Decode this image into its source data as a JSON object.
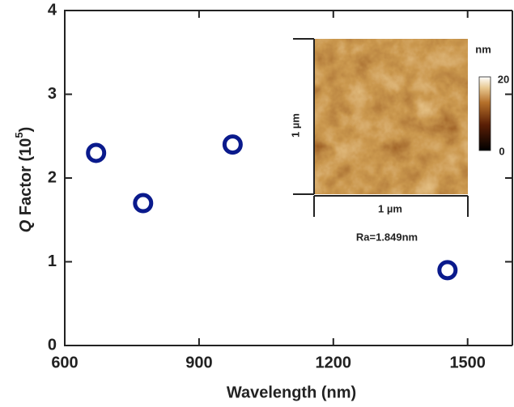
{
  "chart_data": {
    "type": "scatter",
    "x_label": "Wavelength (nm)",
    "y_label": {
      "italic": "Q",
      "text": " Factor (10",
      "superscript": "5",
      "close": ")"
    },
    "x": [
      670,
      775,
      975,
      1455
    ],
    "values": [
      2.3,
      1.7,
      2.4,
      0.9
    ],
    "color": "#0a1a8c",
    "xlim": [
      600,
      1600
    ],
    "ylim": [
      0,
      4
    ],
    "xticks": [
      600,
      900,
      1200,
      1500
    ],
    "yticks": [
      0,
      1,
      2,
      3,
      4
    ],
    "inset": {
      "colorbar_unit": "nm",
      "colorbar_max": "20",
      "colorbar_min": "0",
      "scale_vertical": "1 µm",
      "scale_horizontal": "1 µm",
      "annotation": "Ra=1.849nm"
    }
  }
}
